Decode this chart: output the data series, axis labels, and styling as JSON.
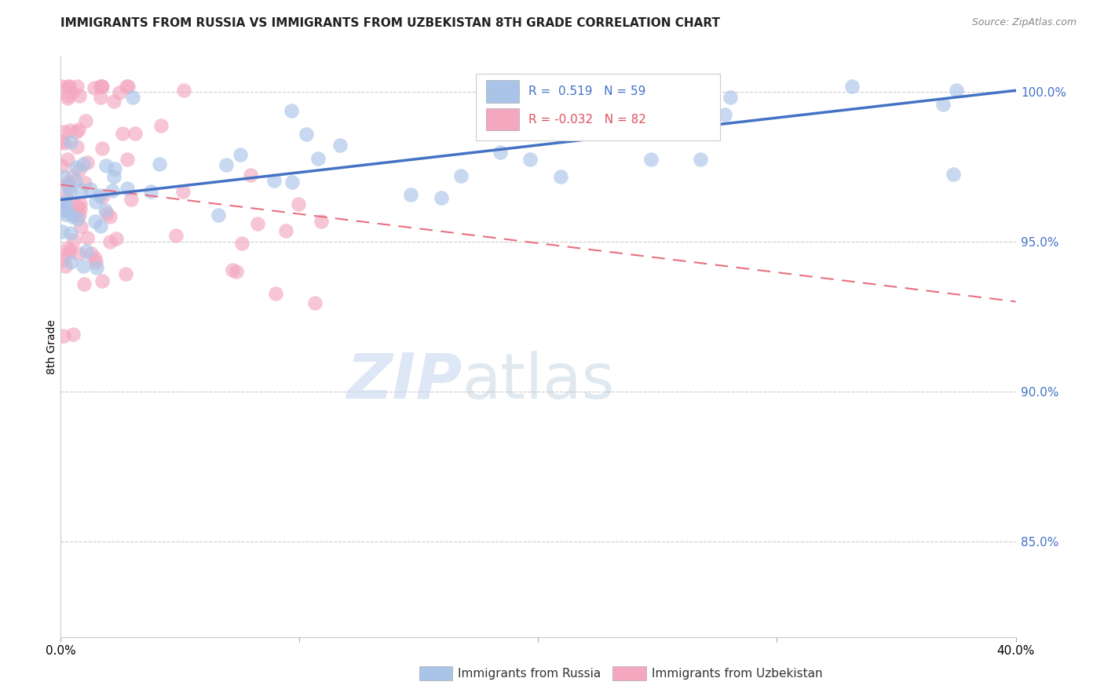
{
  "title": "IMMIGRANTS FROM RUSSIA VS IMMIGRANTS FROM UZBEKISTAN 8TH GRADE CORRELATION CHART",
  "source": "Source: ZipAtlas.com",
  "ylabel": "8th Grade",
  "ytick_labels": [
    "85.0%",
    "90.0%",
    "95.0%",
    "100.0%"
  ],
  "ytick_values": [
    0.85,
    0.9,
    0.95,
    1.0
  ],
  "xlim": [
    0.0,
    0.4
  ],
  "ylim": [
    0.818,
    1.012
  ],
  "R_russia": 0.519,
  "N_russia": 59,
  "R_uzbek": -0.032,
  "N_uzbek": 82,
  "color_russia": "#aac4e8",
  "color_uzbek": "#f4a8c0",
  "trendline_russia": "#4472c4",
  "trendline_uzbek": "#e87080",
  "legend_russia": "Immigrants from Russia",
  "legend_uzbek": "Immigrants from Uzbekistan",
  "watermark_zip": "ZIP",
  "watermark_atlas": "atlas",
  "russia_trend_x": [
    0.0,
    0.4
  ],
  "russia_trend_y": [
    0.964,
    1.0005
  ],
  "uzbek_trend_x": [
    0.0,
    0.4
  ],
  "uzbek_trend_y": [
    0.969,
    0.93
  ]
}
